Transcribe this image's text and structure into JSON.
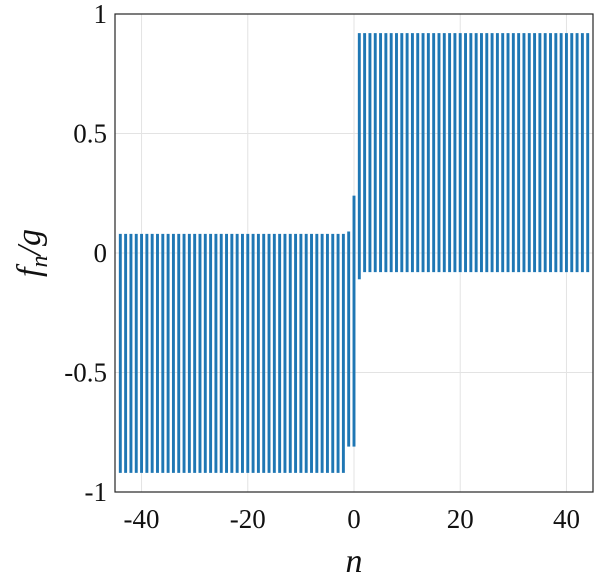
{
  "chart_data": {
    "type": "bar",
    "title": "",
    "xlabel": "n",
    "ylabel": "f_n/g",
    "ylabel_parts": {
      "main": "f",
      "sub": "n",
      "rest": "/g"
    },
    "xlim": [
      -45,
      45
    ],
    "ylim": [
      -1,
      1
    ],
    "xticks": [
      -40,
      -20,
      0,
      20,
      40
    ],
    "xtick_labels": [
      "-40",
      "-20",
      "0",
      "20",
      "40"
    ],
    "yticks": [
      1,
      0.5,
      0,
      -0.5,
      -1
    ],
    "ytick_labels": [
      "1",
      "0.5",
      "0",
      "-0.5",
      "-1"
    ],
    "grid": true,
    "bar_color": "#1f77b4",
    "series": [
      {
        "rule": "n <= -2: pairs of bars (+0.08, -0.92); n = -1: (+0.09, -0.81); n = 0: (+0.24, -0.81); n = 1: (+0.92, -0.11); n >= 2: (+0.92, -0.08)",
        "x": [
          -44,
          -43,
          -42,
          -41,
          -40,
          -39,
          -38,
          -37,
          -36,
          -35,
          -34,
          -33,
          -32,
          -31,
          -30,
          -29,
          -28,
          -27,
          -26,
          -25,
          -24,
          -23,
          -22,
          -21,
          -20,
          -19,
          -18,
          -17,
          -16,
          -15,
          -14,
          -13,
          -12,
          -11,
          -10,
          -9,
          -8,
          -7,
          -6,
          -5,
          -4,
          -3,
          -2,
          -1,
          0,
          1,
          2,
          3,
          4,
          5,
          6,
          7,
          8,
          9,
          10,
          11,
          12,
          13,
          14,
          15,
          16,
          17,
          18,
          19,
          20,
          21,
          22,
          23,
          24,
          25,
          26,
          27,
          28,
          29,
          30,
          31,
          32,
          33,
          34,
          35,
          36,
          37,
          38,
          39,
          40,
          41,
          42,
          43,
          44
        ],
        "positive": [
          0.08,
          0.08,
          0.08,
          0.08,
          0.08,
          0.08,
          0.08,
          0.08,
          0.08,
          0.08,
          0.08,
          0.08,
          0.08,
          0.08,
          0.08,
          0.08,
          0.08,
          0.08,
          0.08,
          0.08,
          0.08,
          0.08,
          0.08,
          0.08,
          0.08,
          0.08,
          0.08,
          0.08,
          0.08,
          0.08,
          0.08,
          0.08,
          0.08,
          0.08,
          0.08,
          0.08,
          0.08,
          0.08,
          0.08,
          0.08,
          0.08,
          0.08,
          0.08,
          0.09,
          0.24,
          0.92,
          0.92,
          0.92,
          0.92,
          0.92,
          0.92,
          0.92,
          0.92,
          0.92,
          0.92,
          0.92,
          0.92,
          0.92,
          0.92,
          0.92,
          0.92,
          0.92,
          0.92,
          0.92,
          0.92,
          0.92,
          0.92,
          0.92,
          0.92,
          0.92,
          0.92,
          0.92,
          0.92,
          0.92,
          0.92,
          0.92,
          0.92,
          0.92,
          0.92,
          0.92,
          0.92,
          0.92,
          0.92,
          0.92,
          0.92,
          0.92,
          0.92,
          0.92,
          0.92
        ],
        "negative": [
          -0.92,
          -0.92,
          -0.92,
          -0.92,
          -0.92,
          -0.92,
          -0.92,
          -0.92,
          -0.92,
          -0.92,
          -0.92,
          -0.92,
          -0.92,
          -0.92,
          -0.92,
          -0.92,
          -0.92,
          -0.92,
          -0.92,
          -0.92,
          -0.92,
          -0.92,
          -0.92,
          -0.92,
          -0.92,
          -0.92,
          -0.92,
          -0.92,
          -0.92,
          -0.92,
          -0.92,
          -0.92,
          -0.92,
          -0.92,
          -0.92,
          -0.92,
          -0.92,
          -0.92,
          -0.92,
          -0.92,
          -0.92,
          -0.92,
          -0.92,
          -0.81,
          -0.81,
          -0.11,
          -0.08,
          -0.08,
          -0.08,
          -0.08,
          -0.08,
          -0.08,
          -0.08,
          -0.08,
          -0.08,
          -0.08,
          -0.08,
          -0.08,
          -0.08,
          -0.08,
          -0.08,
          -0.08,
          -0.08,
          -0.08,
          -0.08,
          -0.08,
          -0.08,
          -0.08,
          -0.08,
          -0.08,
          -0.08,
          -0.08,
          -0.08,
          -0.08,
          -0.08,
          -0.08,
          -0.08,
          -0.08,
          -0.08,
          -0.08,
          -0.08,
          -0.08,
          -0.08,
          -0.08,
          -0.08,
          -0.08,
          -0.08,
          -0.08,
          -0.08
        ]
      }
    ]
  }
}
